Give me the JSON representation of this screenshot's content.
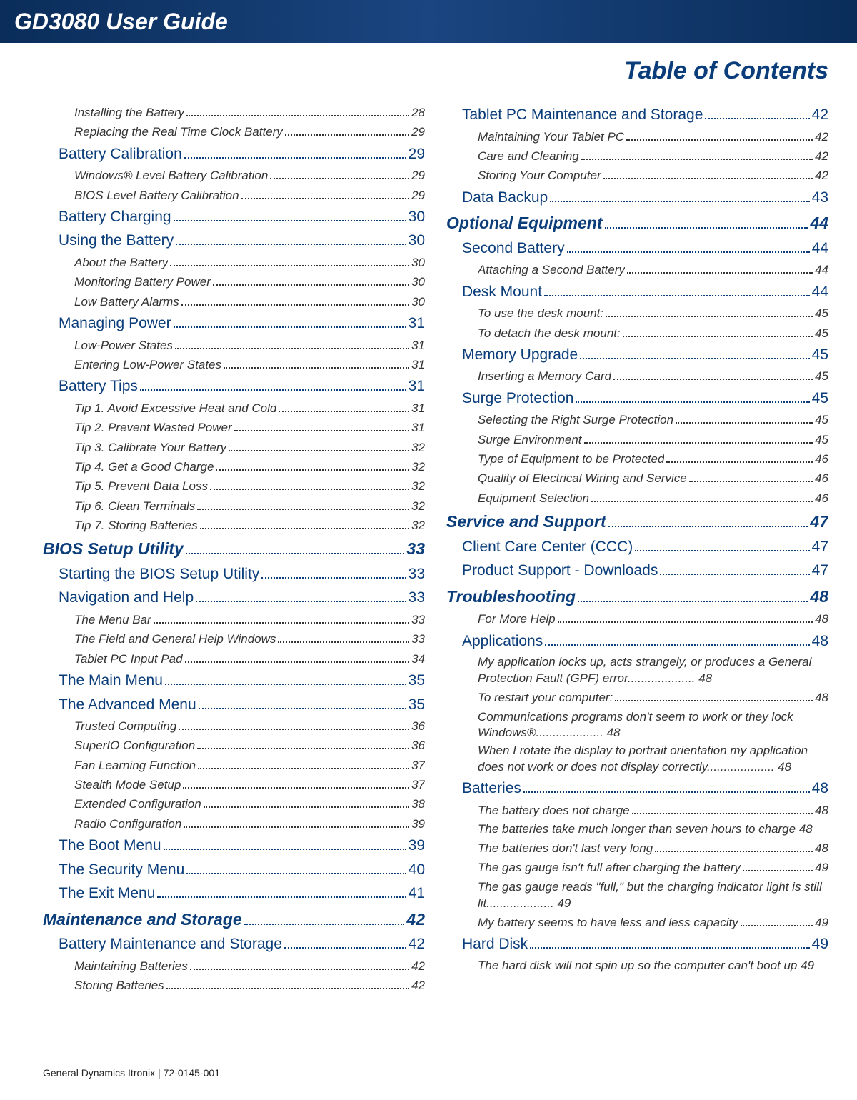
{
  "header": {
    "title": "GD3080 User Guide"
  },
  "page_title": "Table of Contents",
  "footer": "General Dynamics Itronix | 72-0145-001",
  "left": [
    {
      "lvl": 3,
      "t": "Installing the Battery",
      "p": "28"
    },
    {
      "lvl": 3,
      "t": "Replacing the Real Time Clock Battery",
      "p": "29"
    },
    {
      "lvl": 2,
      "t": "Battery Calibration",
      "p": "29"
    },
    {
      "lvl": 3,
      "t": "Windows® Level Battery Calibration",
      "p": "29"
    },
    {
      "lvl": 3,
      "t": "BIOS Level Battery Calibration",
      "p": "29"
    },
    {
      "lvl": 2,
      "t": "Battery Charging",
      "p": "30"
    },
    {
      "lvl": 2,
      "t": "Using the Battery",
      "p": "30"
    },
    {
      "lvl": 3,
      "t": "About the Battery",
      "p": "30"
    },
    {
      "lvl": 3,
      "t": "Monitoring Battery Power",
      "p": "30"
    },
    {
      "lvl": 3,
      "t": "Low Battery Alarms",
      "p": "30"
    },
    {
      "lvl": 2,
      "t": "Managing Power",
      "p": "31"
    },
    {
      "lvl": 3,
      "t": "Low-Power States",
      "p": "31"
    },
    {
      "lvl": 3,
      "t": "Entering Low-Power States",
      "p": "31"
    },
    {
      "lvl": 2,
      "t": "Battery Tips",
      "p": "31"
    },
    {
      "lvl": 3,
      "t": "Tip 1. Avoid Excessive Heat and Cold",
      "p": "31"
    },
    {
      "lvl": 3,
      "t": "Tip 2. Prevent Wasted Power",
      "p": "31"
    },
    {
      "lvl": 3,
      "t": "Tip 3. Calibrate Your Battery",
      "p": "32"
    },
    {
      "lvl": 3,
      "t": "Tip 4. Get a Good Charge",
      "p": "32"
    },
    {
      "lvl": 3,
      "t": "Tip 5. Prevent Data Loss",
      "p": "32"
    },
    {
      "lvl": 3,
      "t": "Tip 6. Clean Terminals",
      "p": "32"
    },
    {
      "lvl": 3,
      "t": "Tip 7. Storing Batteries",
      "p": "32"
    },
    {
      "lvl": 1,
      "t": "BIOS Setup Utility",
      "p": "33"
    },
    {
      "lvl": 2,
      "t": "Starting the BIOS Setup Utility",
      "p": "33"
    },
    {
      "lvl": 2,
      "t": "Navigation and Help",
      "p": "33"
    },
    {
      "lvl": 3,
      "t": "The Menu Bar",
      "p": "33"
    },
    {
      "lvl": 3,
      "t": "The Field and General Help Windows",
      "p": "33"
    },
    {
      "lvl": 3,
      "t": "Tablet PC Input Pad",
      "p": "34"
    },
    {
      "lvl": 2,
      "t": "The Main Menu",
      "p": "35"
    },
    {
      "lvl": 2,
      "t": "The Advanced Menu",
      "p": "35"
    },
    {
      "lvl": 3,
      "t": "Trusted Computing",
      "p": "36"
    },
    {
      "lvl": 3,
      "t": "SuperIO Configuration",
      "p": "36"
    },
    {
      "lvl": 3,
      "t": "Fan Learning Function",
      "p": "37"
    },
    {
      "lvl": 3,
      "t": "Stealth Mode Setup",
      "p": "37"
    },
    {
      "lvl": 3,
      "t": "Extended Configuration",
      "p": "38"
    },
    {
      "lvl": 3,
      "t": "Radio Configuration",
      "p": "39"
    },
    {
      "lvl": 2,
      "t": "The Boot Menu",
      "p": "39"
    },
    {
      "lvl": 2,
      "t": "The Security Menu",
      "p": "40"
    },
    {
      "lvl": 2,
      "t": "The Exit Menu",
      "p": "41"
    },
    {
      "lvl": 1,
      "t": "Maintenance and Storage",
      "p": "42"
    },
    {
      "lvl": 2,
      "t": "Battery Maintenance and Storage",
      "p": "42"
    },
    {
      "lvl": 3,
      "t": "Maintaining Batteries",
      "p": "42"
    },
    {
      "lvl": 3,
      "t": "Storing Batteries",
      "p": "42"
    }
  ],
  "right": [
    {
      "lvl": 2,
      "t": "Tablet PC Maintenance and Storage",
      "p": "42"
    },
    {
      "lvl": 3,
      "t": "Maintaining Your Tablet PC",
      "p": "42"
    },
    {
      "lvl": 3,
      "t": "Care and Cleaning",
      "p": "42"
    },
    {
      "lvl": 3,
      "t": "Storing Your Computer",
      "p": "42"
    },
    {
      "lvl": 2,
      "t": "Data Backup",
      "p": "43"
    },
    {
      "lvl": 1,
      "t": "Optional Equipment",
      "p": "44"
    },
    {
      "lvl": 2,
      "t": "Second Battery",
      "p": "44"
    },
    {
      "lvl": 3,
      "t": "Attaching a Second Battery",
      "p": "44"
    },
    {
      "lvl": 2,
      "t": "Desk Mount",
      "p": "44"
    },
    {
      "lvl": 3,
      "t": "To use the desk mount:",
      "p": "45"
    },
    {
      "lvl": 3,
      "t": "To detach the desk mount:",
      "p": "45"
    },
    {
      "lvl": 2,
      "t": "Memory Upgrade",
      "p": "45"
    },
    {
      "lvl": 3,
      "t": "Inserting a Memory Card",
      "p": "45"
    },
    {
      "lvl": 2,
      "t": "Surge Protection",
      "p": "45"
    },
    {
      "lvl": 3,
      "t": "Selecting the Right Surge Protection",
      "p": "45"
    },
    {
      "lvl": 3,
      "t": "Surge Environment",
      "p": "45"
    },
    {
      "lvl": 3,
      "t": "Type of Equipment to be Protected",
      "p": "46"
    },
    {
      "lvl": 3,
      "t": "Quality of Electrical Wiring and Service",
      "p": "46"
    },
    {
      "lvl": 3,
      "t": "Equipment Selection",
      "p": "46"
    },
    {
      "lvl": 1,
      "t": "Service and Support",
      "p": "47"
    },
    {
      "lvl": 2,
      "t": "Client Care Center (CCC)",
      "p": "47"
    },
    {
      "lvl": 2,
      "t": "Product Support - Downloads",
      "p": "47"
    },
    {
      "lvl": 1,
      "t": "Troubleshooting",
      "p": "48"
    },
    {
      "lvl": 3,
      "t": "For More Help",
      "p": "48"
    },
    {
      "lvl": 2,
      "t": "Applications",
      "p": "48"
    },
    {
      "lvl": 3,
      "wrap": true,
      "t": "My application locks up, acts strangely, or produces a General Protection Fault (GPF) error",
      "p": "48"
    },
    {
      "lvl": 3,
      "t": "To restart your computer:",
      "p": "48"
    },
    {
      "lvl": 3,
      "wrap": true,
      "t": "Communications programs don't seem to work or they lock Windows®",
      "p": "48"
    },
    {
      "lvl": 3,
      "wrap": true,
      "t": "When I rotate the display to portrait orientation my application does not work or does not display correctly",
      "p": "48"
    },
    {
      "lvl": 2,
      "t": "Batteries",
      "p": "48"
    },
    {
      "lvl": 3,
      "t": "The battery does not charge",
      "p": "48"
    },
    {
      "lvl": 3,
      "wrap": true,
      "nodots": true,
      "t": "The batteries take much longer than seven hours to charge",
      "p": "48"
    },
    {
      "lvl": 3,
      "t": "The batteries don't last very long",
      "p": "48"
    },
    {
      "lvl": 3,
      "t": "The gas gauge isn't full after charging the battery",
      "p": "49"
    },
    {
      "lvl": 3,
      "wrap": true,
      "t": "The gas gauge reads \"full,\" but the charging indicator light is still lit",
      "p": "49"
    },
    {
      "lvl": 3,
      "t": "My battery seems to have less and less capacity",
      "p": "49"
    },
    {
      "lvl": 2,
      "t": "Hard Disk",
      "p": "49"
    },
    {
      "lvl": 3,
      "wrap": true,
      "nodots": true,
      "t": "The hard disk will not spin up so the computer can't boot up",
      "p": "49"
    }
  ]
}
